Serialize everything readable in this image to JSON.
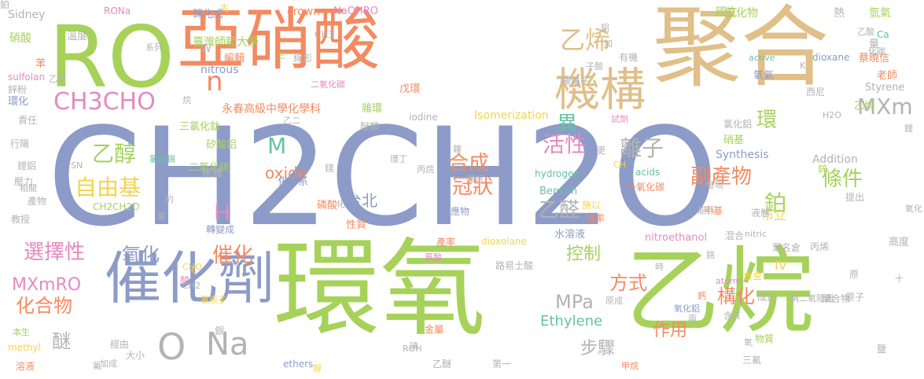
{
  "word_cloud": {
    "colors": {
      "blue": "#8c9bc8",
      "green": "#a6d25a",
      "orange": "#f48a60",
      "tan": "#e0bf88",
      "gray": "#b3b3b3",
      "pink": "#e38ac2",
      "teal": "#66c2a5",
      "yellow": "#f7d448"
    },
    "words": [
      {
        "text": "CH2CH2O",
        "color": "#8c9bc8"
      },
      {
        "text": "環氧",
        "color": "#a6d25a"
      },
      {
        "text": "乙烷",
        "color": "#a6d25a"
      },
      {
        "text": "聚合",
        "color": "#e0bf88"
      },
      {
        "text": "亞硝酸",
        "color": "#f48a60"
      },
      {
        "text": "RO",
        "color": "#a6d25a"
      },
      {
        "text": "催化劑",
        "color": "#8c9bc8"
      },
      {
        "text": "機構",
        "color": "#e0bf88"
      },
      {
        "text": "O",
        "color": "#b3b3b3"
      },
      {
        "text": "Na",
        "color": "#b3b3b3"
      },
      {
        "text": "CH3CHO",
        "color": "#e38ac2"
      },
      {
        "text": "n",
        "color": "#f48a60"
      },
      {
        "text": "乙烯",
        "color": "#e0bf88"
      },
      {
        "text": "MXm",
        "color": "#b3b3b3"
      },
      {
        "text": "異",
        "color": "#66c2a5"
      },
      {
        "text": "環",
        "color": "#a6d25a"
      },
      {
        "text": "乙醇",
        "color": "#a6d25a"
      },
      {
        "text": "合成",
        "color": "#f48a60"
      },
      {
        "text": "活性",
        "color": "#e38ac2"
      },
      {
        "text": "離子",
        "color": "#b3b3b3"
      },
      {
        "text": "M",
        "color": "#66c2a5"
      },
      {
        "text": "冠狀",
        "color": "#f48a60"
      },
      {
        "text": "自由基",
        "color": "#f7d448"
      },
      {
        "text": "副產物",
        "color": "#f48a60"
      },
      {
        "text": "條件",
        "color": "#a6d25a"
      },
      {
        "text": "乙醛",
        "color": "#b3b3b3"
      },
      {
        "text": "鉑",
        "color": "#a6d25a"
      },
      {
        "text": "H",
        "color": "#e38ac2"
      },
      {
        "text": "oxide",
        "color": "#f48a60"
      },
      {
        "text": "台北",
        "color": "#8c9bc8"
      },
      {
        "text": "選擇性",
        "color": "#e38ac2"
      },
      {
        "text": "氧化",
        "color": "#8c9bc8"
      },
      {
        "text": "催化",
        "color": "#f48a60"
      },
      {
        "text": "控制",
        "color": "#a6d25a"
      },
      {
        "text": "MPa",
        "color": "#b3b3b3"
      },
      {
        "text": "方式",
        "color": "#f48a60"
      },
      {
        "text": "構化",
        "color": "#f48a60"
      },
      {
        "text": "化合物",
        "color": "#f48a60"
      },
      {
        "text": "MXmRO",
        "color": "#e38ac2"
      },
      {
        "text": "Ethylene",
        "color": "#66c2a5"
      },
      {
        "text": "作用",
        "color": "#f48a60"
      },
      {
        "text": "步驟",
        "color": "#b3b3b3"
      },
      {
        "text": "醚",
        "color": "#b3b3b3"
      },
      {
        "text": "市立",
        "color": "#f7d448"
      },
      {
        "text": "IV",
        "color": "#f7d448"
      },
      {
        "text": "臺灣師範大學",
        "color": "#a6d25a"
      },
      {
        "text": "永春高級中學化學科",
        "color": "#f48a60"
      },
      {
        "text": "Sidney",
        "color": "#b3b3b3"
      },
      {
        "text": "RONa",
        "color": "#e38ac2"
      },
      {
        "text": "先",
        "color": "#f7d448"
      },
      {
        "text": "crown",
        "color": "#f48a60"
      },
      {
        "text": "NaOHRO",
        "color": "#e38ac2"
      },
      {
        "text": "國立",
        "color": "#a6d25a"
      },
      {
        "text": "氫化物",
        "color": "#a6d25a"
      },
      {
        "text": "熱",
        "color": "#b3b3b3"
      },
      {
        "text": "氫氣",
        "color": "#a6d25a"
      },
      {
        "text": "硝酸",
        "color": "#a6d25a"
      },
      {
        "text": "溫度",
        "color": "#b3b3b3"
      },
      {
        "text": "系列",
        "color": "#b3b3b3"
      },
      {
        "text": "轉化成",
        "color": "#8c9bc8"
      },
      {
        "text": "CH3",
        "color": "#b3b3b3"
      },
      {
        "text": "編輯",
        "color": "#f48a60"
      },
      {
        "text": "線形",
        "color": "#b3b3b3"
      },
      {
        "text": "苯",
        "color": "#f48a60"
      },
      {
        "text": "sulfolan",
        "color": "#e38ac2"
      },
      {
        "text": "鋅粉",
        "color": "#b3b3b3"
      },
      {
        "text": "環化",
        "color": "#8c9bc8"
      },
      {
        "text": "乙炔",
        "color": "#b3b3b3"
      },
      {
        "text": "nitrous",
        "color": "#8c9bc8"
      },
      {
        "text": "二氧化碳",
        "color": "#e38ac2"
      },
      {
        "text": "陽離子",
        "color": "#b3b3b3"
      },
      {
        "text": "有機",
        "color": "#b3b3b3"
      },
      {
        "text": "active",
        "color": "#66c2a5"
      },
      {
        "text": "dioxane",
        "color": "#8c9bc8"
      },
      {
        "text": "蔡曉信",
        "color": "#f48a60"
      },
      {
        "text": "氧氣",
        "color": "#8c9bc8"
      },
      {
        "text": "老師",
        "color": "#f48a60"
      },
      {
        "text": "西尼",
        "color": "#b3b3b3"
      },
      {
        "text": "Styrene",
        "color": "#b3b3b3"
      },
      {
        "text": "乙烷",
        "color": "#a6d25a"
      },
      {
        "text": "責任",
        "color": "#b3b3b3"
      },
      {
        "text": "雜環",
        "color": "#a6d25a"
      },
      {
        "text": "iodine",
        "color": "#b3b3b3"
      },
      {
        "text": "Isomerization",
        "color": "#f7d448"
      },
      {
        "text": "戊環",
        "color": "#f48a60"
      },
      {
        "text": "三氯化鈦",
        "color": "#a6d25a"
      },
      {
        "text": "醚類",
        "color": "#b3b3b3"
      },
      {
        "text": "試劑",
        "color": "#e38ac2"
      },
      {
        "text": "H2O",
        "color": "#b3b3b3"
      },
      {
        "text": "行陽",
        "color": "#b3b3b3"
      },
      {
        "text": "矽酸鋁",
        "color": "#a6d25a"
      },
      {
        "text": "二氧化硫",
        "color": "#a6d25a"
      },
      {
        "text": "氯化鋁",
        "color": "#b3b3b3"
      },
      {
        "text": "硝基",
        "color": "#a6d25a"
      },
      {
        "text": "Synthesis",
        "color": "#8c9bc8"
      },
      {
        "text": "鋰鋁",
        "color": "#b3b3b3"
      },
      {
        "text": "稀釋",
        "color": "#b3b3b3"
      },
      {
        "text": "hydrogen",
        "color": "#66c2a5"
      },
      {
        "text": "Addition",
        "color": "#b3b3b3"
      },
      {
        "text": "壓力",
        "color": "#b3b3b3"
      },
      {
        "text": "化學系",
        "color": "#8c9bc8"
      },
      {
        "text": "acids",
        "color": "#66c2a5"
      },
      {
        "text": "一氧化碳",
        "color": "#f48a60"
      },
      {
        "text": "Benson",
        "color": "#66c2a5"
      },
      {
        "text": "產物",
        "color": "#b3b3b3"
      },
      {
        "text": "CH2CH2O",
        "color": "#a6d25a"
      },
      {
        "text": "磷酸",
        "color": "#f48a60"
      },
      {
        "text": "反應物",
        "color": "#8c9bc8"
      },
      {
        "text": "施以",
        "color": "#f7d448"
      },
      {
        "text": "速率",
        "color": "#f48a60"
      },
      {
        "text": "液態",
        "color": "#b3b3b3"
      },
      {
        "text": "提出",
        "color": "#b3b3b3"
      },
      {
        "text": "教授",
        "color": "#b3b3b3"
      },
      {
        "text": "轉變成",
        "color": "#8c9bc8"
      },
      {
        "text": "性質",
        "color": "#f48a60"
      },
      {
        "text": "水溶液",
        "color": "#8c9bc8"
      },
      {
        "text": "nitroethanol",
        "color": "#e38ac2"
      },
      {
        "text": "混合",
        "color": "#b3b3b3"
      },
      {
        "text": "nitric",
        "color": "#b3b3b3"
      },
      {
        "text": "高度",
        "color": "#b3b3b3"
      },
      {
        "text": "dioxolane",
        "color": "#f7d448"
      },
      {
        "text": "產率",
        "color": "#f48a60"
      },
      {
        "text": "葉名倉",
        "color": "#b3b3b3"
      },
      {
        "text": "丙烯",
        "color": "#b3b3b3"
      },
      {
        "text": "氯酸",
        "color": "#e38ac2"
      },
      {
        "text": "路易士酸",
        "color": "#b3b3b3"
      },
      {
        "text": "合金",
        "color": "#f7d448"
      },
      {
        "text": "atoms",
        "color": "#e38ac2"
      },
      {
        "text": "原",
        "color": "#b3b3b3"
      },
      {
        "text": "原成",
        "color": "#b3b3b3"
      },
      {
        "text": "鈉二氧陸圜",
        "color": "#b3b3b3"
      },
      {
        "text": "聚合物",
        "color": "#b3b3b3"
      },
      {
        "text": "原子",
        "color": "#b3b3b3"
      },
      {
        "text": "氧化鋁",
        "color": "#8c9bc8"
      },
      {
        "text": "成正",
        "color": "#b3b3b3"
      },
      {
        "text": "本生",
        "color": "#a6d25a"
      },
      {
        "text": "methyl",
        "color": "#f7d448"
      },
      {
        "text": "溶液",
        "color": "#f48a60"
      },
      {
        "text": "經由",
        "color": "#b3b3b3"
      },
      {
        "text": "加成",
        "color": "#b3b3b3"
      },
      {
        "text": "ethers",
        "color": "#8c9bc8"
      },
      {
        "text": "乙醚",
        "color": "#b3b3b3"
      },
      {
        "text": "第一",
        "color": "#b3b3b3"
      },
      {
        "text": "ROH",
        "color": "#b3b3b3"
      },
      {
        "text": "甲烷",
        "color": "#f48a60"
      },
      {
        "text": "三氟",
        "color": "#b3b3b3"
      },
      {
        "text": "物質",
        "color": "#a6d25a"
      },
      {
        "text": "鹽",
        "color": "#b3b3b3"
      },
      {
        "text": "金屬",
        "color": "#f48a60"
      },
      {
        "text": "碘",
        "color": "#b3b3b3"
      },
      {
        "text": "銀",
        "color": "#b3b3b3"
      },
      {
        "text": "大小",
        "color": "#b3b3b3"
      },
      {
        "text": "鋅",
        "color": "#a6d25a"
      },
      {
        "text": "發現",
        "color": "#b3b3b3"
      },
      {
        "text": "甲基",
        "color": "#f48a60"
      },
      {
        "text": "氯化錫",
        "color": "#66c2a5"
      },
      {
        "text": "丙烷",
        "color": "#b3b3b3"
      },
      {
        "text": "環丁",
        "color": "#b3b3b3"
      },
      {
        "text": "硼烷",
        "color": "#b3b3b3"
      },
      {
        "text": "CHO",
        "color": "#f7d448"
      },
      {
        "text": "CH2",
        "color": "#b3b3b3"
      },
      {
        "text": "氯原子",
        "color": "#f7d448"
      },
      {
        "text": "相關",
        "color": "#b3b3b3"
      },
      {
        "text": "化碳",
        "color": "#b3b3b3"
      },
      {
        "text": "鋁",
        "color": "#b3b3b3"
      },
      {
        "text": "加",
        "color": "#b3b3b3"
      },
      {
        "text": "子酸",
        "color": "#b3b3b3"
      },
      {
        "text": "乙酸",
        "color": "#b3b3b3"
      },
      {
        "text": "Ca",
        "color": "#66c2a5"
      },
      {
        "text": "量",
        "color": "#b3b3b3"
      },
      {
        "text": "三",
        "color": "#a6d25a"
      },
      {
        "text": "W",
        "color": "#b3b3b3"
      },
      {
        "text": "K",
        "color": "#b3b3b3"
      },
      {
        "text": "能行",
        "color": "#b3b3b3"
      },
      {
        "text": "更",
        "color": "#b3b3b3"
      },
      {
        "text": "鎳",
        "color": "#b3b3b3"
      },
      {
        "text": "鎂",
        "color": "#b3b3b3"
      },
      {
        "text": "約",
        "color": "#b3b3b3"
      },
      {
        "text": "化",
        "color": "#b3b3b3"
      },
      {
        "text": "聚",
        "color": "#b3b3b3"
      },
      {
        "text": "酸",
        "color": "#e38ac2"
      },
      {
        "text": "鉻",
        "color": "#b3b3b3"
      },
      {
        "text": "鈣",
        "color": "#f48a60"
      },
      {
        "text": "兩",
        "color": "#b3b3b3"
      },
      {
        "text": "含質",
        "color": "#b3b3b3"
      },
      {
        "text": "氧",
        "color": "#b3b3b3"
      },
      {
        "text": "十",
        "color": "#b3b3b3"
      },
      {
        "text": "鋰",
        "color": "#b3b3b3"
      },
      {
        "text": "氟",
        "color": "#b3b3b3"
      },
      {
        "text": "醇",
        "color": "#f7d448"
      },
      {
        "text": "C",
        "color": "#f7d448"
      },
      {
        "text": "CH",
        "color": "#f7d448"
      },
      {
        "text": "SN",
        "color": "#b3b3b3"
      },
      {
        "text": "乙二",
        "color": "#b3b3b3"
      },
      {
        "text": "時",
        "color": "#b3b3b3"
      },
      {
        "text": "烷",
        "color": "#b3b3b3"
      },
      {
        "text": "氧化",
        "color": "#b3b3b3"
      },
      {
        "text": "鉑",
        "color": "#b3b3b3"
      }
    ]
  }
}
